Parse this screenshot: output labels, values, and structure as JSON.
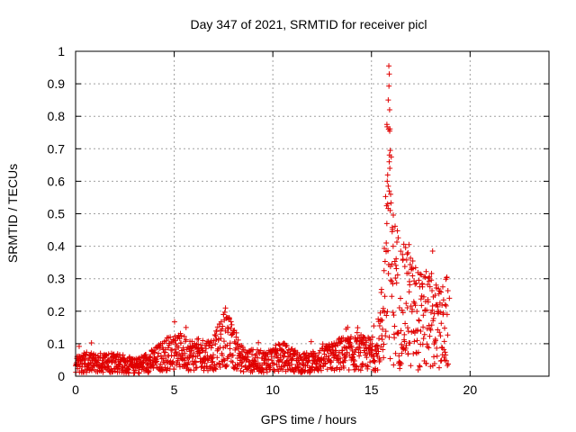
{
  "chart_data": {
    "type": "scatter",
    "title": "Day 347 of 2021, SRMTID for receiver picl",
    "xlabel": "GPS time / hours",
    "ylabel": "SRMTID / TECUs",
    "xlim": [
      0,
      24
    ],
    "ylim": [
      0,
      1
    ],
    "x_ticks": [
      0,
      5,
      10,
      15,
      20
    ],
    "y_ticks": [
      0,
      0.1,
      0.2,
      0.3,
      0.4,
      0.5,
      0.6,
      0.7,
      0.8,
      0.9,
      1
    ],
    "x_tick_labels": [
      "0",
      "5",
      "10",
      "15",
      "20"
    ],
    "y_tick_labels": [
      "0",
      "0.1",
      "0.2",
      "0.3",
      "0.4",
      "0.5",
      "0.6",
      "0.7",
      "0.8",
      "0.9",
      "1"
    ],
    "grid": true,
    "marker": "+",
    "series": [
      {
        "name": "SRMTID",
        "color": "#e00000",
        "profile": [
          {
            "x": 0.0,
            "y": 0.045
          },
          {
            "x": 1.0,
            "y": 0.04
          },
          {
            "x": 2.0,
            "y": 0.045
          },
          {
            "x": 3.0,
            "y": 0.03
          },
          {
            "x": 4.0,
            "y": 0.05
          },
          {
            "x": 5.0,
            "y": 0.08
          },
          {
            "x": 6.0,
            "y": 0.065
          },
          {
            "x": 7.0,
            "y": 0.07
          },
          {
            "x": 7.6,
            "y": 0.12
          },
          {
            "x": 8.5,
            "y": 0.05
          },
          {
            "x": 9.5,
            "y": 0.045
          },
          {
            "x": 10.5,
            "y": 0.06
          },
          {
            "x": 11.5,
            "y": 0.04
          },
          {
            "x": 12.5,
            "y": 0.05
          },
          {
            "x": 13.5,
            "y": 0.07
          },
          {
            "x": 14.5,
            "y": 0.07
          },
          {
            "x": 15.3,
            "y": 0.07
          },
          {
            "x": 15.6,
            "y": 0.2
          },
          {
            "x": 15.85,
            "y": 0.5
          },
          {
            "x": 16.1,
            "y": 0.28
          },
          {
            "x": 16.5,
            "y": 0.22
          },
          {
            "x": 17.0,
            "y": 0.2
          },
          {
            "x": 17.5,
            "y": 0.17
          },
          {
            "x": 18.0,
            "y": 0.17
          },
          {
            "x": 18.5,
            "y": 0.14
          },
          {
            "x": 18.9,
            "y": 0.17
          }
        ],
        "peaks": [
          {
            "x": 15.88,
            "y": 0.955
          },
          {
            "x": 15.9,
            "y": 0.93
          },
          {
            "x": 15.85,
            "y": 0.85
          },
          {
            "x": 15.92,
            "y": 0.82
          },
          {
            "x": 15.87,
            "y": 0.76
          },
          {
            "x": 15.95,
            "y": 0.695
          },
          {
            "x": 15.9,
            "y": 0.66
          },
          {
            "x": 15.93,
            "y": 0.64
          },
          {
            "x": 15.8,
            "y": 0.6
          },
          {
            "x": 15.85,
            "y": 0.585
          },
          {
            "x": 15.9,
            "y": 0.57
          },
          {
            "x": 15.97,
            "y": 0.56
          },
          {
            "x": 15.82,
            "y": 0.53
          },
          {
            "x": 15.95,
            "y": 0.51
          },
          {
            "x": 15.78,
            "y": 0.47
          },
          {
            "x": 16.05,
            "y": 0.445
          },
          {
            "x": 15.75,
            "y": 0.41
          },
          {
            "x": 16.1,
            "y": 0.4
          },
          {
            "x": 16.9,
            "y": 0.405
          },
          {
            "x": 16.85,
            "y": 0.38
          },
          {
            "x": 18.1,
            "y": 0.385
          },
          {
            "x": 16.6,
            "y": 0.36
          },
          {
            "x": 7.6,
            "y": 0.21
          },
          {
            "x": 7.5,
            "y": 0.19
          },
          {
            "x": 7.7,
            "y": 0.18
          },
          {
            "x": 5.6,
            "y": 0.15
          },
          {
            "x": 18.95,
            "y": 0.24
          }
        ]
      }
    ]
  }
}
